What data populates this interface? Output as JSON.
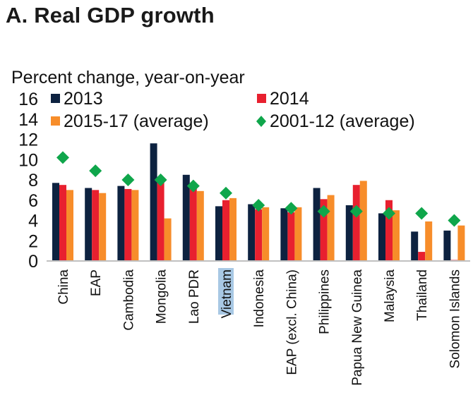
{
  "chart_data": {
    "type": "bar",
    "title": "A. Real GDP growth",
    "ylabel": "Percent change, year-on-year",
    "xlabel": "",
    "ylim": [
      0,
      16
    ],
    "yticks": [
      0,
      2,
      4,
      6,
      8,
      10,
      12,
      14,
      16
    ],
    "grid": false,
    "legend_position": "top",
    "categories": [
      "China",
      "EAP",
      "Cambodia",
      "Mongolia",
      "Lao PDR",
      "Vietnam",
      "Indonesia",
      "EAP (excl. China)",
      "Philippines",
      "Papua New Guinea",
      "Malaysia",
      "Thailand",
      "Solomon Islands"
    ],
    "highlighted_category": "Vietnam",
    "series": [
      {
        "name": "2013",
        "kind": "bar",
        "color": "#0d2240",
        "values": [
          7.7,
          7.2,
          7.4,
          11.6,
          8.5,
          5.4,
          5.6,
          5.2,
          7.2,
          5.5,
          4.7,
          2.9,
          3.0
        ]
      },
      {
        "name": "2014",
        "kind": "bar",
        "color": "#e8202f",
        "values": [
          7.5,
          7.0,
          7.1,
          7.9,
          7.4,
          6.0,
          5.1,
          4.8,
          6.1,
          7.5,
          6.0,
          0.9,
          0.1
        ]
      },
      {
        "name": "2015-17 (average)",
        "kind": "bar",
        "color": "#f78d2a",
        "values": [
          7.0,
          6.7,
          7.0,
          4.2,
          6.9,
          6.2,
          5.3,
          5.3,
          6.5,
          7.9,
          5.0,
          3.9,
          3.5
        ]
      },
      {
        "name": "2001-12 (average)",
        "kind": "marker",
        "marker": "diamond",
        "color": "#0fa64b",
        "values": [
          10.2,
          8.9,
          8.0,
          8.0,
          7.4,
          6.7,
          5.5,
          5.2,
          4.9,
          4.9,
          4.7,
          4.7,
          4.0
        ]
      }
    ]
  },
  "colors": {
    "axis": "#c0c0c0",
    "highlight": "#a8c8e4",
    "text": "#111111"
  }
}
